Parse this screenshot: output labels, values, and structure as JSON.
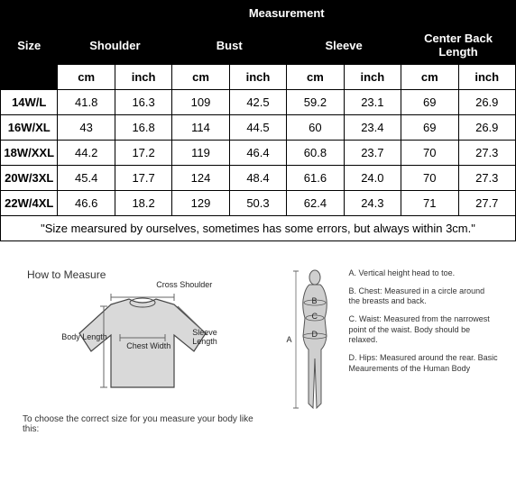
{
  "table": {
    "header_size": "Size",
    "header_measurement": "Measurement",
    "columns": [
      "Shoulder",
      "Bust",
      "Sleeve",
      "Center Back Length"
    ],
    "unit_cm": "cm",
    "unit_inch": "inch",
    "rows": [
      {
        "size": "14W/L",
        "vals": [
          "41.8",
          "16.3",
          "109",
          "42.5",
          "59.2",
          "23.1",
          "69",
          "26.9"
        ]
      },
      {
        "size": "16W/XL",
        "vals": [
          "43",
          "16.8",
          "114",
          "44.5",
          "60",
          "23.4",
          "69",
          "26.9"
        ]
      },
      {
        "size": "18W/XXL",
        "vals": [
          "44.2",
          "17.2",
          "119",
          "46.4",
          "60.8",
          "23.7",
          "70",
          "27.3"
        ]
      },
      {
        "size": "20W/3XL",
        "vals": [
          "45.4",
          "17.7",
          "124",
          "48.4",
          "61.6",
          "24.0",
          "70",
          "27.3"
        ]
      },
      {
        "size": "22W/4XL",
        "vals": [
          "46.6",
          "18.2",
          "129",
          "50.3",
          "62.4",
          "24.3",
          "71",
          "27.7"
        ]
      }
    ],
    "footnote": "\"Size mearsured by ourselves, sometimes has some errors, but always within 3cm.\""
  },
  "measure": {
    "title": "How to Measure",
    "cross_shoulder": "Cross Shoulder",
    "body_length": "Body Length",
    "chest_width": "Chest Width",
    "sleeve_length": "Sleeve Length",
    "choose_text": "To choose the correct size for you measure your body like this:",
    "defs": {
      "A": "A. Vertical height head to toe.",
      "B": "B. Chest: Measured in a circle around the breasts and back.",
      "C": "C. Waist: Measured from the narrowest point of the waist. Body should be relaxed.",
      "D": "D. Hips: Measured around the rear. Basic Meaurements of the Human Body"
    },
    "body_labels": {
      "A": "A",
      "B": "B",
      "C": "C",
      "D": "D"
    }
  },
  "style": {
    "border_color": "#000000",
    "header_bg": "#000000",
    "header_fg": "#ffffff",
    "body_bg": "#ffffff",
    "shirt_fill": "#d9d9d9",
    "shirt_stroke": "#444444",
    "body_fill": "#cfcfcf",
    "body_stroke": "#555555"
  }
}
